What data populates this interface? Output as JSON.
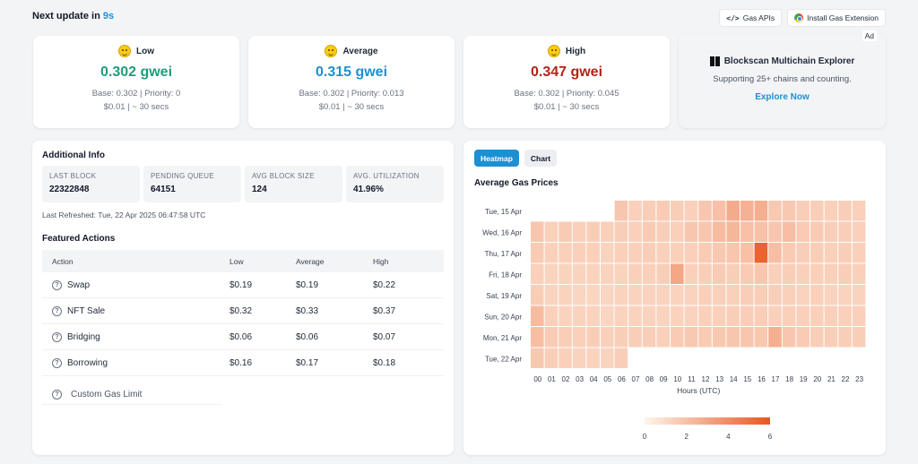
{
  "topbar": {
    "next_update_label": "Next update in",
    "next_update_value": "9s",
    "gas_apis_label": "Gas APIs",
    "install_ext_label": "Install Gas Extension"
  },
  "prices": [
    {
      "label": "Low",
      "gwei": "0.302 gwei",
      "color": "#1e9e7a",
      "base_priority": "Base: 0.302 | Priority: 0",
      "cost_time": "$0.01 | ~ 30 secs"
    },
    {
      "label": "Average",
      "gwei": "0.315 gwei",
      "color": "#1d8fd3",
      "base_priority": "Base: 0.302 | Priority: 0.013",
      "cost_time": "$0.01 | ~ 30 secs"
    },
    {
      "label": "High",
      "gwei": "0.347 gwei",
      "color": "#b42318",
      "base_priority": "Base: 0.302 | Priority: 0.045",
      "cost_time": "$0.01 | ~ 30 secs"
    }
  ],
  "ad": {
    "tag": "Ad",
    "title": "Blockscan Multichain Explorer",
    "subtitle": "Supporting 25+ chains and counting.",
    "link": "Explore Now"
  },
  "info": {
    "title": "Additional Info",
    "stats": [
      {
        "label": "LAST BLOCK",
        "value": "22322848"
      },
      {
        "label": "PENDING QUEUE",
        "value": "64151"
      },
      {
        "label": "AVG BLOCK SIZE",
        "value": "124"
      },
      {
        "label": "AVG. UTILIZATION",
        "value": "41.96%"
      }
    ],
    "refreshed": "Last Refreshed: Tue, 22 Apr 2025 06:47:58 UTC"
  },
  "actions": {
    "title": "Featured Actions",
    "headers": [
      "Action",
      "Low",
      "Average",
      "High"
    ],
    "rows": [
      {
        "name": "Swap",
        "low": "$0.19",
        "avg": "$0.19",
        "high": "$0.22"
      },
      {
        "name": "NFT Sale",
        "low": "$0.32",
        "avg": "$0.33",
        "high": "$0.37"
      },
      {
        "name": "Bridging",
        "low": "$0.06",
        "avg": "$0.06",
        "high": "$0.07"
      },
      {
        "name": "Borrowing",
        "low": "$0.16",
        "avg": "$0.17",
        "high": "$0.18"
      }
    ],
    "custom": "Custom Gas Limit"
  },
  "chart_panel": {
    "tabs": [
      "Heatmap",
      "Chart"
    ],
    "active_tab": "Heatmap"
  },
  "chart_data": {
    "type": "heatmap",
    "title": "Average Gas Prices",
    "xlabel": "Hours (UTC)",
    "ylabel": "",
    "x": [
      "00",
      "01",
      "02",
      "03",
      "04",
      "05",
      "06",
      "07",
      "08",
      "09",
      "10",
      "11",
      "12",
      "13",
      "14",
      "15",
      "16",
      "17",
      "18",
      "19",
      "20",
      "21",
      "22",
      "23"
    ],
    "y": [
      "Tue, 15 Apr",
      "Wed, 16 Apr",
      "Thu, 17 Apr",
      "Fri, 18 Apr",
      "Sat, 19 Apr",
      "Sun, 20 Apr",
      "Mon, 21 Apr",
      "Tue, 22 Apr"
    ],
    "values": [
      [
        null,
        null,
        null,
        null,
        null,
        null,
        1.8,
        1.4,
        1.5,
        1.6,
        1.5,
        1.4,
        1.8,
        2.0,
        2.8,
        2.6,
        2.7,
        1.7,
        1.7,
        1.5,
        1.5,
        1.4,
        1.5,
        1.4
      ],
      [
        1.8,
        1.4,
        1.6,
        1.4,
        1.5,
        1.4,
        1.5,
        1.4,
        1.6,
        1.5,
        1.4,
        1.8,
        1.8,
        2.2,
        2.4,
        2.0,
        2.0,
        1.8,
        2.1,
        1.6,
        1.6,
        1.5,
        1.5,
        1.4
      ],
      [
        1.6,
        1.4,
        1.4,
        1.4,
        1.4,
        1.3,
        1.4,
        1.4,
        1.5,
        1.4,
        1.4,
        1.4,
        1.6,
        1.7,
        1.8,
        2.0,
        5.5,
        2.1,
        1.6,
        1.5,
        1.5,
        1.4,
        1.5,
        1.4
      ],
      [
        1.4,
        1.3,
        1.3,
        1.3,
        1.3,
        1.3,
        1.3,
        1.4,
        1.4,
        1.5,
        3.0,
        1.4,
        1.5,
        1.6,
        1.5,
        1.6,
        1.8,
        1.4,
        1.5,
        1.4,
        1.4,
        1.4,
        1.5,
        1.4
      ],
      [
        1.5,
        1.3,
        1.3,
        1.2,
        1.2,
        1.2,
        1.3,
        1.3,
        1.3,
        1.3,
        1.3,
        1.3,
        1.4,
        1.4,
        1.4,
        1.5,
        1.5,
        1.5,
        1.4,
        1.3,
        1.4,
        1.3,
        1.3,
        1.3
      ],
      [
        2.2,
        1.4,
        1.3,
        1.3,
        1.3,
        1.2,
        1.3,
        1.3,
        1.3,
        1.3,
        1.3,
        1.3,
        1.4,
        1.4,
        1.5,
        1.5,
        1.5,
        1.4,
        1.4,
        1.4,
        1.4,
        1.4,
        1.4,
        1.4
      ],
      [
        2.1,
        1.6,
        1.5,
        1.4,
        1.5,
        1.4,
        1.5,
        1.5,
        1.5,
        1.4,
        1.6,
        1.7,
        1.6,
        1.7,
        1.8,
        1.8,
        1.7,
        2.7,
        1.8,
        1.6,
        1.5,
        1.5,
        1.5,
        1.5
      ],
      [
        1.7,
        1.5,
        1.4,
        1.3,
        1.3,
        1.3,
        1.5,
        null,
        null,
        null,
        null,
        null,
        null,
        null,
        null,
        null,
        null,
        null,
        null,
        null,
        null,
        null,
        null,
        null
      ]
    ],
    "color_scale": {
      "min": 0,
      "max": 6,
      "low_color": "#fff5eb",
      "high_color": "#e8571f"
    },
    "legend_ticks": [
      "0",
      "2",
      "4",
      "6"
    ]
  }
}
